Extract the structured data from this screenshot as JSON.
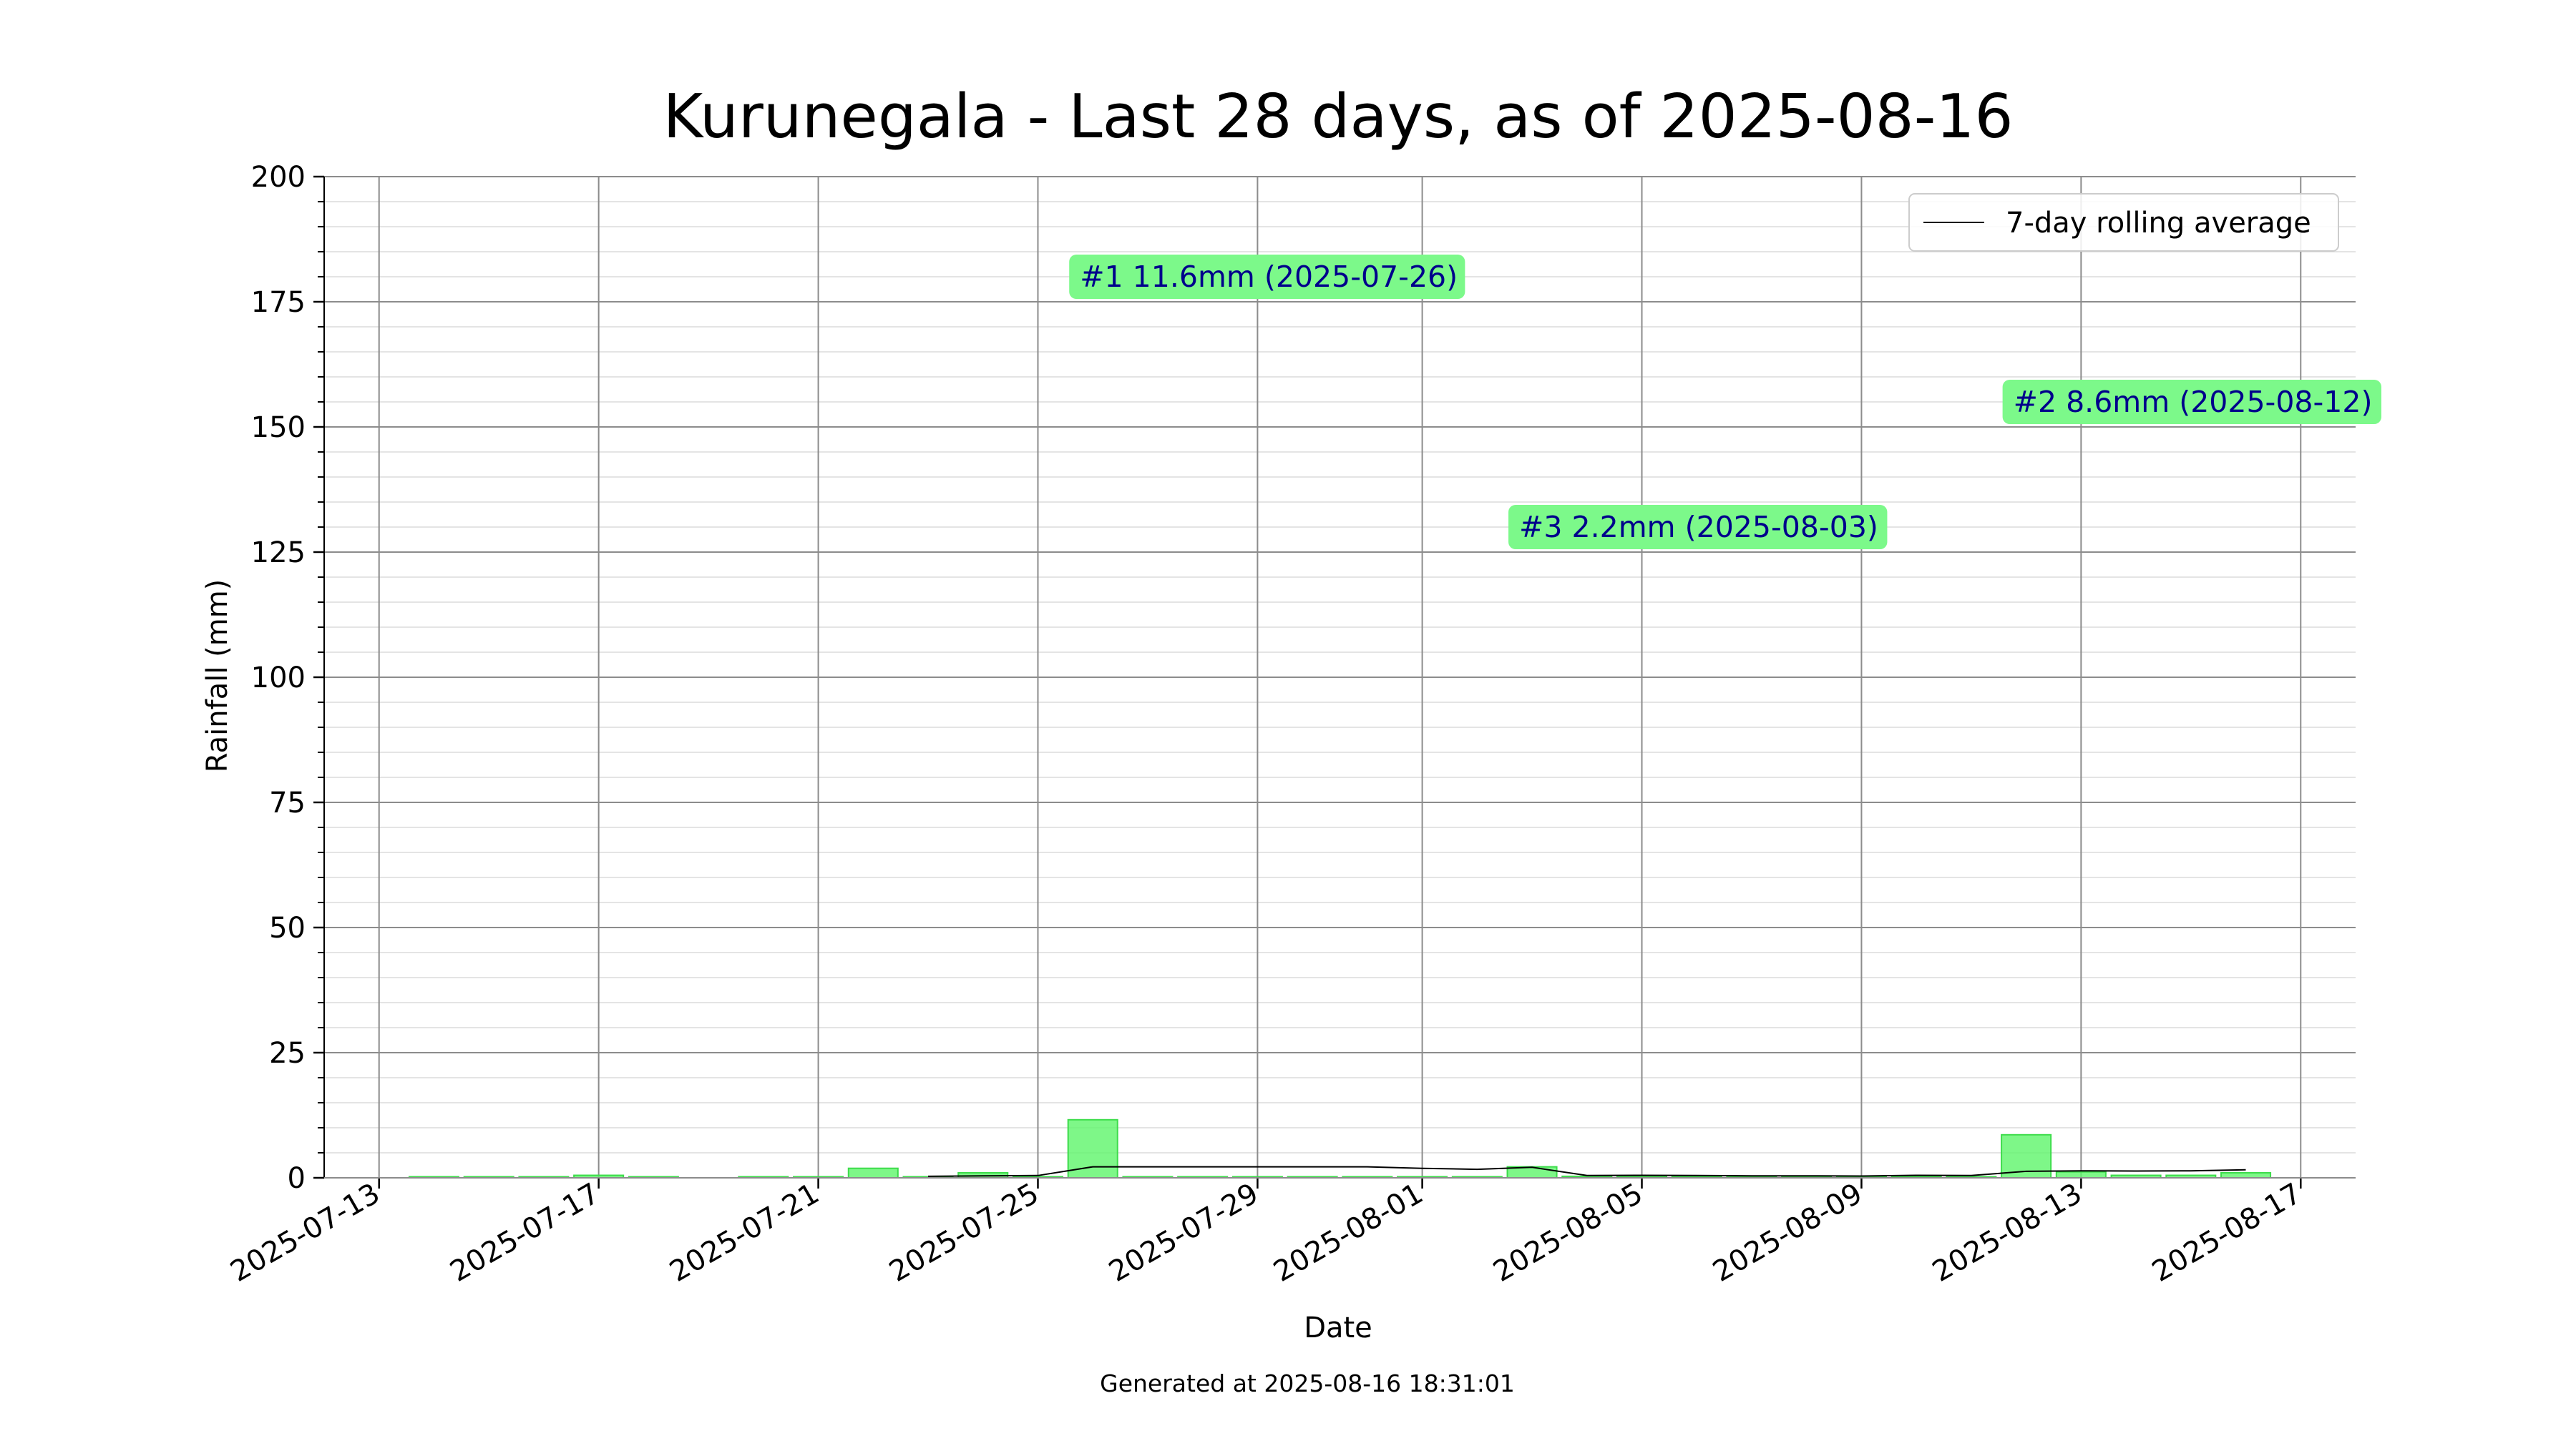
{
  "footer": {
    "generated": "Generated at 2025-08-16 18:31:01"
  },
  "chart_data": {
    "type": "bar",
    "title": "Kurunegala - Last 28 days, as of 2025-08-16",
    "xlabel": "Date",
    "ylabel": "Rainfall (mm)",
    "ylim": [
      0,
      200
    ],
    "y_ticks": [
      0,
      25,
      50,
      75,
      100,
      125,
      150,
      175,
      200
    ],
    "y_minor_step": 5,
    "xlim": [
      "2025-07-12",
      "2025-08-18"
    ],
    "x_ticks": [
      "2025-07-13",
      "2025-07-17",
      "2025-07-21",
      "2025-07-25",
      "2025-07-29",
      "2025-08-01",
      "2025-08-05",
      "2025-08-09",
      "2025-08-13",
      "2025-08-17"
    ],
    "grid": true,
    "legend_position": "top-right",
    "colors": {
      "bar": "#5ef56a",
      "bar_edge": "#3ddc4b",
      "line": "#000000",
      "annotation_bg": "#7cf98a",
      "annotation_text": "#00008b"
    },
    "series": [
      {
        "kind": "bar",
        "x": [
          "2025-07-14",
          "2025-07-15",
          "2025-07-16",
          "2025-07-17",
          "2025-07-18",
          "2025-07-20",
          "2025-07-21",
          "2025-07-22",
          "2025-07-23",
          "2025-07-24",
          "2025-07-25",
          "2025-07-26",
          "2025-07-27",
          "2025-07-28",
          "2025-07-29",
          "2025-07-30",
          "2025-07-31",
          "2025-08-01",
          "2025-08-02",
          "2025-08-03",
          "2025-08-04",
          "2025-08-05",
          "2025-08-06",
          "2025-08-07",
          "2025-08-08",
          "2025-08-09",
          "2025-08-10",
          "2025-08-11",
          "2025-08-12",
          "2025-08-13",
          "2025-08-14",
          "2025-08-15",
          "2025-08-16"
        ],
        "values": [
          0.1,
          0.1,
          0.1,
          0.5,
          0.1,
          0.1,
          0.1,
          1.9,
          0.1,
          1.0,
          0.1,
          11.6,
          0.1,
          0.1,
          0.1,
          0.1,
          0.1,
          0.1,
          0.1,
          2.2,
          0.3,
          0.3,
          0.1,
          0.1,
          0.1,
          0.1,
          0.1,
          0.1,
          8.6,
          1.2,
          0.5,
          0.5,
          1.0
        ]
      },
      {
        "kind": "line",
        "name": "7-day rolling average",
        "x": [
          "2025-07-23",
          "2025-07-24",
          "2025-07-25",
          "2025-07-26",
          "2025-07-27",
          "2025-07-28",
          "2025-07-29",
          "2025-07-30",
          "2025-07-31",
          "2025-08-01",
          "2025-08-02",
          "2025-08-03",
          "2025-08-04",
          "2025-08-05",
          "2025-08-06",
          "2025-08-07",
          "2025-08-08",
          "2025-08-09",
          "2025-08-10",
          "2025-08-11",
          "2025-08-12",
          "2025-08-13",
          "2025-08-14",
          "2025-08-15",
          "2025-08-16"
        ],
        "values": [
          0.3,
          0.4,
          0.45,
          2.2,
          2.2,
          2.2,
          2.2,
          2.2,
          2.2,
          1.9,
          1.7,
          2.1,
          0.45,
          0.5,
          0.45,
          0.4,
          0.4,
          0.35,
          0.5,
          0.45,
          1.3,
          1.4,
          1.35,
          1.4,
          1.6
        ]
      }
    ],
    "annotations": [
      {
        "text": "#1 11.6mm (2025-07-26)",
        "x": "2025-07-26",
        "y": 180
      },
      {
        "text": "#2 8.6mm (2025-08-12)",
        "x": "2025-08-12",
        "y": 155
      },
      {
        "text": "#3 2.2mm (2025-08-03)",
        "x": "2025-08-03",
        "y": 130
      }
    ]
  }
}
